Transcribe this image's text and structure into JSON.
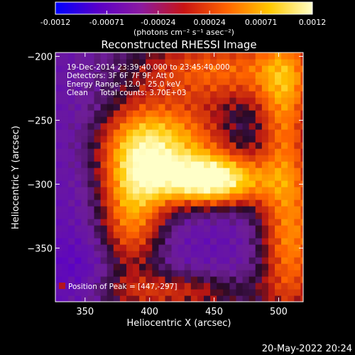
{
  "chart_data": {
    "type": "heatmap",
    "title": "Reconstructed RHESSI Image",
    "xlabel": "Heliocentric X (arcsec)",
    "ylabel": "Heliocentric Y (arcsec)",
    "xlim": [
      327,
      519
    ],
    "ylim": [
      -392,
      -197
    ],
    "x_ticks": [
      350,
      400,
      450,
      500
    ],
    "y_ticks": [
      -350,
      -300,
      -250,
      -200
    ],
    "colorbar": {
      "range": [
        -0.0012,
        0.0012
      ],
      "ticks": [
        "-0.0012",
        "-0.00071",
        "-0.00024",
        "0.00024",
        "0.00071",
        "0.0012"
      ],
      "unit_label": "(photons cm⁻² s⁻¹ asec⁻²)",
      "colors": [
        "#0000ff",
        "#5a00c8",
        "#8c1aa0",
        "#c81414",
        "#ff6400",
        "#ffc800",
        "#ffffc8"
      ]
    },
    "info_lines": [
      "19-Dec-2014 23:39:40.000 to 23:45:40.000",
      "Detectors: 3F 6F 7F 9F, Att 0",
      "Energy Range: 12.0 - 25.0 keV",
      "Clean     Total counts: 3.70E+03"
    ],
    "peak_label": "Position of Peak = [447,-297]",
    "peak": [
      447,
      -297
    ],
    "timestamp": "20-May-2022 20:24"
  }
}
